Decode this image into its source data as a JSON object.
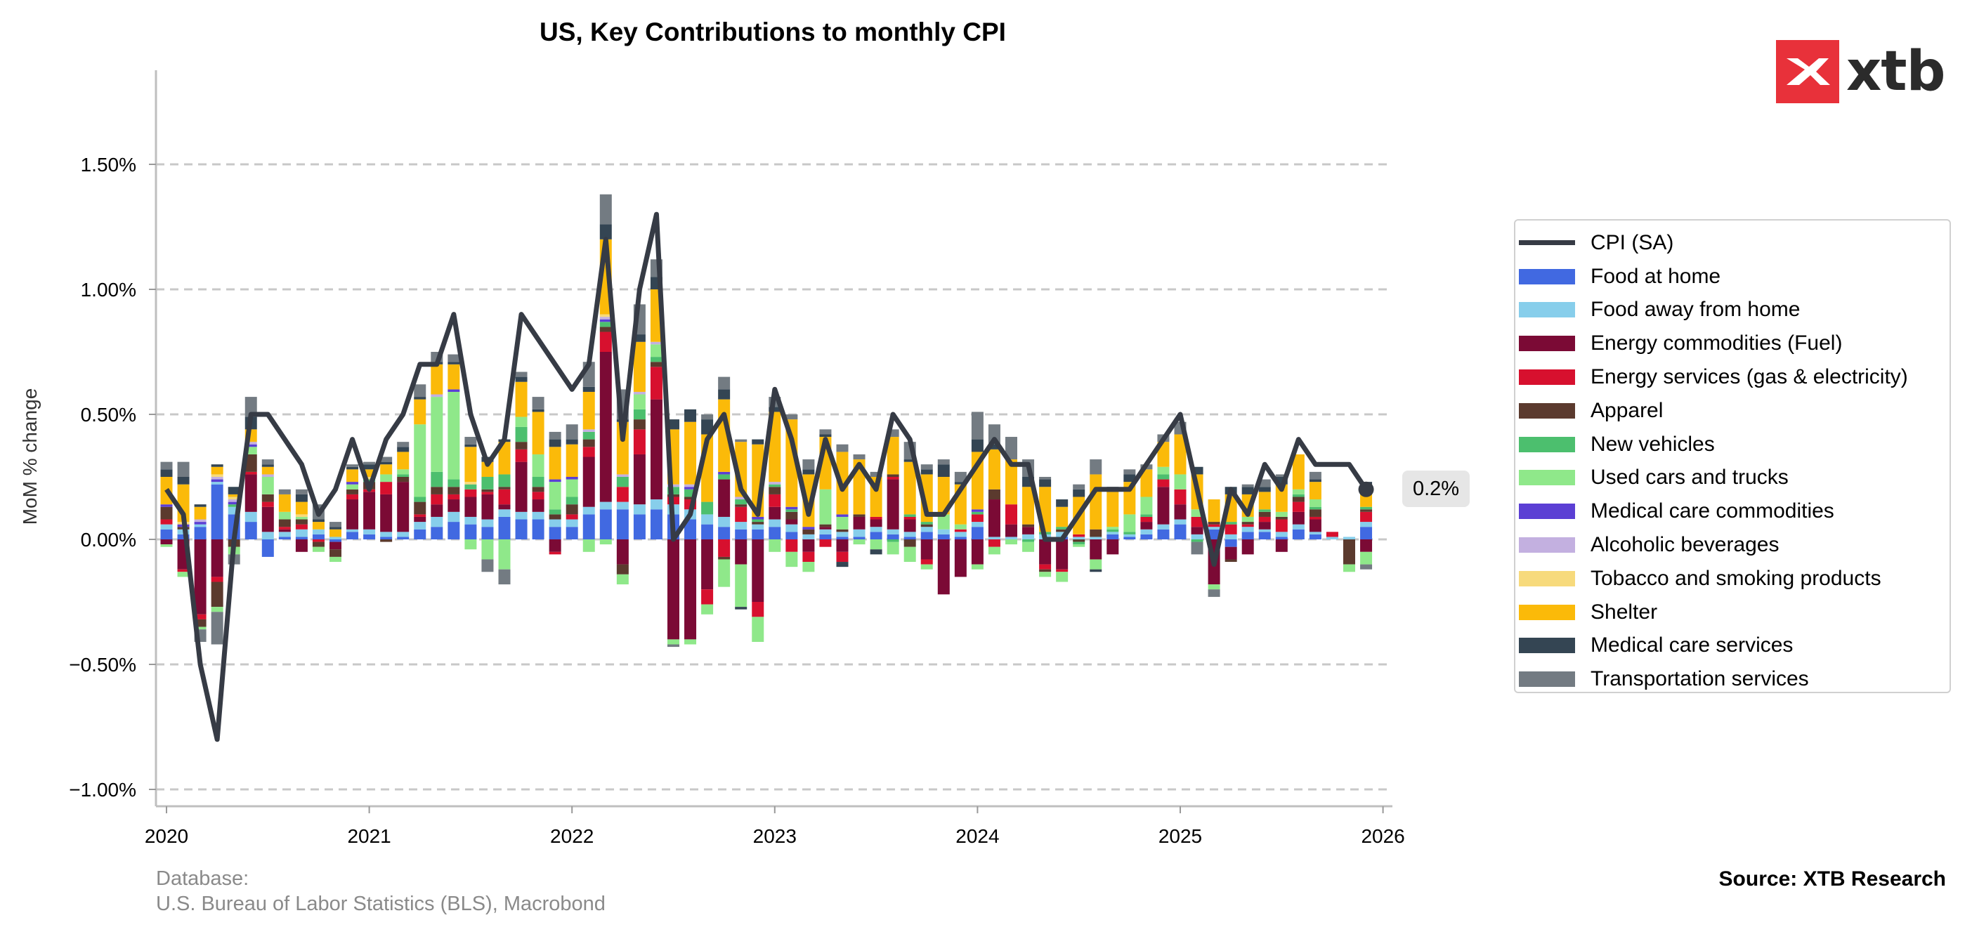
{
  "logo": {
    "text": "xtb",
    "icon": "xtb-x-logo-icon"
  },
  "source": "Source: XTB Research",
  "database_line1": "Database:",
  "database_line2": "U.S. Bureau of Labor Statistics (BLS), Macrobond",
  "last_value_label": "0.2%",
  "colors": {
    "food_home": "#4169E1",
    "food_away": "#87CEEB",
    "energy_fuel": "#7B0A35",
    "energy_services": "#D7102E",
    "apparel": "#5B3A2E",
    "new_vehicles": "#4CBF6E",
    "used_cars": "#8FE88A",
    "med_commodities": "#5B3FD4",
    "alcohol": "#C3B0E0",
    "tobacco": "#F7DA7C",
    "shelter": "#FBBA09",
    "med_services": "#344553",
    "transport": "#737B82",
    "cpi_line": "#363B45"
  },
  "chart_data": {
    "type": "bar",
    "title": "US, Key Contributions to monthly CPI",
    "ylabel": "MoM % change",
    "xlabel": "",
    "ylim": [
      -1.06,
      1.87
    ],
    "yticks": [
      -1.0,
      -0.5,
      0.0,
      0.5,
      1.0,
      1.5
    ],
    "ytick_labels": [
      "−1.00%",
      "−0.50%",
      "0.00%",
      "0.50%",
      "1.00%",
      "1.50%"
    ],
    "x_labels": [
      "2020",
      "2021",
      "2022",
      "2023",
      "2024",
      "2025",
      "2026"
    ],
    "grid": "horizontal dashed",
    "legend_position": "right",
    "stacked": true,
    "months": [
      "2020-01",
      "2020-02",
      "2020-03",
      "2020-04",
      "2020-05",
      "2020-06",
      "2020-07",
      "2020-08",
      "2020-09",
      "2020-10",
      "2020-11",
      "2020-12",
      "2021-01",
      "2021-02",
      "2021-03",
      "2021-04",
      "2021-05",
      "2021-06",
      "2021-07",
      "2021-08",
      "2021-09",
      "2021-10",
      "2021-11",
      "2021-12",
      "2022-01",
      "2022-02",
      "2022-03",
      "2022-04",
      "2022-05",
      "2022-06",
      "2022-07",
      "2022-08",
      "2022-09",
      "2022-10",
      "2022-11",
      "2022-12",
      "2023-01",
      "2023-02",
      "2023-03",
      "2023-04",
      "2023-05",
      "2023-06",
      "2023-07",
      "2023-08",
      "2023-09",
      "2023-10",
      "2023-11",
      "2023-12",
      "2024-01",
      "2024-02",
      "2024-03",
      "2024-04",
      "2024-05",
      "2024-06",
      "2024-07",
      "2024-08",
      "2024-09",
      "2024-10",
      "2024-11",
      "2024-12",
      "2025-01",
      "2025-02",
      "2025-03",
      "2025-04",
      "2025-05",
      "2025-06",
      "2025-07",
      "2025-08",
      "2025-09",
      "2025-10",
      "2025-11",
      "2025-12"
    ],
    "series": [
      {
        "name": "Food at home",
        "key": "food_home",
        "values": [
          0.04,
          0.02,
          0.05,
          0.22,
          0.1,
          0.07,
          -0.07,
          0.01,
          0.01,
          0.02,
          -0.01,
          0.03,
          0.02,
          0.01,
          0.01,
          0.04,
          0.05,
          0.07,
          0.06,
          0.05,
          0.09,
          0.08,
          0.08,
          0.05,
          0.05,
          0.1,
          0.12,
          0.12,
          0.1,
          0.12,
          0.1,
          0.08,
          0.06,
          0.05,
          0.04,
          0.04,
          0.05,
          0.03,
          0.0,
          0.02,
          0.01,
          0.01,
          0.03,
          0.02,
          0.01,
          0.03,
          0.02,
          0.01,
          0.05,
          0.0,
          0.0,
          0.0,
          0.0,
          0.01,
          0.0,
          0.0,
          0.02,
          0.01,
          0.02,
          0.04,
          0.06,
          0.0,
          0.04,
          -0.03,
          0.03,
          0.03,
          0.01,
          0.04,
          0.02,
          0.0,
          0.0,
          0.05
        ]
      },
      {
        "name": "Food away from home",
        "key": "food_away",
        "values": [
          0.02,
          0.02,
          0.01,
          0.01,
          0.03,
          0.04,
          0.03,
          0.02,
          0.03,
          0.02,
          0.01,
          0.01,
          0.02,
          0.02,
          0.02,
          0.03,
          0.04,
          0.04,
          0.03,
          0.03,
          0.03,
          0.03,
          0.03,
          0.03,
          0.03,
          0.03,
          0.03,
          0.03,
          0.04,
          0.04,
          0.04,
          0.04,
          0.04,
          0.04,
          0.03,
          0.02,
          0.03,
          0.03,
          0.02,
          0.02,
          0.02,
          0.03,
          0.02,
          0.02,
          0.02,
          0.02,
          0.02,
          0.02,
          0.02,
          0.01,
          0.01,
          0.02,
          0.02,
          0.02,
          0.01,
          0.01,
          0.01,
          0.01,
          0.02,
          0.02,
          0.02,
          0.02,
          0.01,
          0.02,
          0.02,
          0.01,
          0.02,
          0.02,
          0.01,
          0.01,
          0.01,
          0.02
        ]
      },
      {
        "name": "Energy commodities (Fuel)",
        "key": "energy_fuel",
        "values": [
          -0.02,
          -0.12,
          -0.3,
          -0.15,
          0.0,
          0.15,
          0.1,
          0.01,
          -0.05,
          0.0,
          -0.03,
          0.12,
          0.15,
          0.15,
          0.2,
          0.02,
          0.05,
          0.05,
          0.08,
          0.1,
          0.02,
          0.2,
          0.05,
          -0.05,
          0.0,
          0.2,
          0.6,
          -0.1,
          0.2,
          0.4,
          -0.4,
          -0.4,
          -0.2,
          0.15,
          -0.1,
          -0.25,
          0.05,
          0.02,
          -0.05,
          0.01,
          -0.05,
          0.05,
          0.03,
          0.2,
          0.05,
          -0.08,
          -0.22,
          -0.15,
          -0.1,
          0.15,
          0.05,
          0.03,
          -0.1,
          -0.12,
          0.0,
          -0.08,
          -0.06,
          0.0,
          0.03,
          0.15,
          0.06,
          0.03,
          -0.18,
          -0.05,
          -0.06,
          0.03,
          -0.05,
          0.05,
          0.05,
          0.0,
          0.0,
          -0.05
        ]
      },
      {
        "name": "Energy services (gas & electricity)",
        "key": "energy_services",
        "values": [
          0.02,
          -0.01,
          -0.02,
          -0.02,
          0.0,
          0.01,
          0.02,
          0.01,
          0.02,
          -0.01,
          0.0,
          0.02,
          0.01,
          0.05,
          0.0,
          0.01,
          0.04,
          0.02,
          0.03,
          0.01,
          0.06,
          0.05,
          0.03,
          -0.01,
          0.02,
          0.04,
          0.08,
          0.06,
          0.1,
          0.13,
          0.03,
          0.04,
          -0.06,
          -0.07,
          0.06,
          -0.06,
          0.05,
          -0.05,
          -0.04,
          -0.03,
          -0.04,
          0.0,
          0.01,
          0.01,
          0.01,
          -0.02,
          0.0,
          0.01,
          0.03,
          -0.03,
          0.08,
          0.0,
          -0.02,
          -0.01,
          0.01,
          0.0,
          0.0,
          0.0,
          0.02,
          0.03,
          0.06,
          0.04,
          0.01,
          0.04,
          0.01,
          0.02,
          0.05,
          0.04,
          0.01,
          0.02,
          0.0,
          0.04
        ]
      },
      {
        "name": "Apparel",
        "key": "apparel",
        "values": [
          0.05,
          0.01,
          -0.03,
          -0.1,
          -0.03,
          0.07,
          0.03,
          0.03,
          0.02,
          -0.02,
          -0.03,
          0.02,
          0.03,
          -0.01,
          0.02,
          0.05,
          0.03,
          0.03,
          0.0,
          0.01,
          0.01,
          0.03,
          0.02,
          0.02,
          0.04,
          0.03,
          0.02,
          -0.04,
          0.04,
          0.02,
          0.01,
          0.01,
          0.0,
          -0.01,
          0.01,
          0.01,
          0.03,
          0.03,
          0.02,
          0.01,
          0.01,
          0.01,
          0.0,
          0.01,
          -0.03,
          0.01,
          0.0,
          0.0,
          0.0,
          0.04,
          0.0,
          0.01,
          -0.01,
          0.01,
          -0.01,
          0.03,
          0.0,
          0.0,
          0.0,
          0.0,
          0.0,
          0.0,
          0.01,
          -0.01,
          0.01,
          0.02,
          0.01,
          0.02,
          0.03,
          0.0,
          -0.1,
          0.01
        ]
      },
      {
        "name": "New vehicles",
        "key": "new_vehicles",
        "values": [
          0.0,
          0.0,
          0.0,
          0.0,
          0.01,
          0.0,
          0.0,
          0.0,
          0.0,
          0.0,
          0.0,
          0.0,
          0.01,
          0.0,
          0.01,
          0.02,
          0.06,
          0.03,
          0.02,
          0.05,
          0.05,
          0.06,
          0.04,
          0.02,
          0.03,
          0.03,
          0.02,
          0.04,
          0.04,
          0.02,
          0.03,
          0.03,
          0.05,
          0.02,
          0.02,
          0.01,
          0.01,
          0.01,
          0.0,
          0.0,
          0.0,
          0.0,
          0.0,
          -0.01,
          0.01,
          0.01,
          0.0,
          0.0,
          0.01,
          0.0,
          0.0,
          -0.01,
          0.01,
          0.01,
          -0.01,
          0.0,
          0.01,
          0.01,
          0.01,
          0.02,
          0.0,
          -0.01,
          0.0,
          0.01,
          0.0,
          0.01,
          0.0,
          0.01,
          0.01,
          0.0,
          0.0,
          0.01
        ]
      },
      {
        "name": "Used cars and trucks",
        "key": "used_cars",
        "values": [
          -0.01,
          -0.02,
          -0.01,
          -0.02,
          -0.03,
          0.03,
          0.07,
          0.03,
          0.01,
          -0.02,
          -0.02,
          0.02,
          0.0,
          0.03,
          0.02,
          0.29,
          0.3,
          0.35,
          -0.04,
          -0.08,
          -0.12,
          0.04,
          0.09,
          0.11,
          0.07,
          -0.05,
          -0.02,
          -0.04,
          0.06,
          0.05,
          -0.02,
          -0.02,
          -0.04,
          -0.11,
          -0.17,
          -0.1,
          -0.05,
          -0.06,
          -0.04,
          0.14,
          0.05,
          -0.02,
          -0.04,
          -0.05,
          -0.06,
          -0.02,
          0.06,
          0.02,
          -0.02,
          -0.03,
          -0.02,
          -0.04,
          -0.02,
          -0.04,
          -0.01,
          -0.04,
          0.01,
          0.07,
          0.07,
          0.03,
          0.06,
          0.03,
          -0.02,
          0.0,
          0.02,
          0.0,
          0.02,
          0.02,
          0.03,
          0.0,
          -0.03,
          -0.05
        ]
      },
      {
        "name": "Medical care commodities",
        "key": "med_commodities",
        "values": [
          0.01,
          0.01,
          0.01,
          0.01,
          0.01,
          0.01,
          0.0,
          0.0,
          0.0,
          0.0,
          0.0,
          0.01,
          0.0,
          0.0,
          0.0,
          0.0,
          0.0,
          0.01,
          0.0,
          0.0,
          0.0,
          0.0,
          0.0,
          0.01,
          0.01,
          0.0,
          0.01,
          0.0,
          0.0,
          0.0,
          0.0,
          0.01,
          0.0,
          0.01,
          0.0,
          0.01,
          0.0,
          0.01,
          0.01,
          0.0,
          0.01,
          0.0,
          0.0,
          0.0,
          0.0,
          0.0,
          0.0,
          0.0,
          0.01,
          0.0,
          0.0,
          0.0,
          0.0,
          0.0,
          0.0,
          0.0,
          0.0,
          0.0,
          0.0,
          0.0,
          0.0,
          0.0,
          0.0,
          0.0,
          0.0,
          0.0,
          0.0,
          0.0,
          0.0,
          0.0,
          0.0,
          0.0
        ]
      },
      {
        "name": "Alcoholic beverages",
        "key": "alcohol",
        "values": [
          0.0,
          0.0,
          0.01,
          0.01,
          0.01,
          0.01,
          0.01,
          0.0,
          0.0,
          0.0,
          0.0,
          0.0,
          0.0,
          0.0,
          0.0,
          0.0,
          0.01,
          0.0,
          0.0,
          0.0,
          0.0,
          0.0,
          0.0,
          0.0,
          0.0,
          0.01,
          0.01,
          0.01,
          0.01,
          0.01,
          0.01,
          0.01,
          0.0,
          0.0,
          0.01,
          0.0,
          0.01,
          0.0,
          0.0,
          0.0,
          0.0,
          0.0,
          0.0,
          0.0,
          0.0,
          0.0,
          0.0,
          0.0,
          0.0,
          0.0,
          0.0,
          0.0,
          0.0,
          0.0,
          0.0,
          0.0,
          0.0,
          0.0,
          0.0,
          0.0,
          0.0,
          0.0,
          0.0,
          0.0,
          0.0,
          0.0,
          0.0,
          0.0,
          0.0,
          0.0,
          0.0,
          0.0
        ]
      },
      {
        "name": "Tobacco and smoking products",
        "key": "tobacco",
        "values": [
          0.0,
          0.01,
          0.0,
          0.01,
          0.01,
          0.0,
          0.0,
          0.0,
          0.01,
          0.0,
          0.0,
          0.0,
          0.01,
          0.0,
          0.0,
          0.0,
          0.0,
          0.0,
          0.01,
          0.0,
          0.0,
          0.0,
          0.0,
          0.0,
          0.0,
          0.0,
          0.01,
          0.0,
          0.0,
          0.0,
          0.0,
          0.0,
          0.0,
          0.0,
          0.0,
          0.0,
          0.0,
          0.0,
          0.0,
          0.0,
          0.0,
          0.0,
          0.0,
          0.0,
          0.0,
          0.0,
          0.0,
          0.0,
          0.0,
          0.0,
          0.0,
          0.0,
          0.0,
          0.0,
          0.0,
          0.0,
          0.0,
          0.0,
          0.0,
          0.0,
          0.0,
          0.0,
          0.0,
          0.0,
          0.0,
          0.0,
          0.0,
          0.0,
          0.0,
          0.0,
          0.0,
          0.0
        ]
      },
      {
        "name": "Shelter",
        "key": "shelter",
        "values": [
          0.11,
          0.15,
          0.05,
          0.03,
          0.01,
          0.05,
          0.03,
          0.07,
          0.05,
          0.03,
          0.03,
          0.05,
          0.03,
          0.04,
          0.07,
          0.1,
          0.12,
          0.1,
          0.14,
          0.06,
          0.13,
          0.14,
          0.17,
          0.13,
          0.13,
          0.15,
          0.3,
          0.21,
          0.2,
          0.21,
          0.22,
          0.25,
          0.27,
          0.29,
          0.22,
          0.29,
          0.28,
          0.35,
          0.21,
          0.21,
          0.25,
          0.22,
          0.16,
          0.15,
          0.21,
          0.19,
          0.15,
          0.16,
          0.23,
          0.16,
          0.18,
          0.15,
          0.18,
          0.08,
          0.15,
          0.22,
          0.14,
          0.13,
          0.11,
          0.1,
          0.16,
          0.14,
          0.09,
          0.11,
          0.09,
          0.07,
          0.11,
          0.14,
          0.07,
          0.0,
          0.0,
          0.09
        ]
      },
      {
        "name": "Medical care services",
        "key": "med_services",
        "values": [
          0.03,
          0.03,
          0.01,
          0.01,
          0.03,
          0.05,
          0.01,
          0.0,
          0.03,
          0.01,
          0.01,
          0.01,
          0.02,
          0.01,
          0.02,
          0.01,
          0.01,
          0.01,
          0.01,
          0.02,
          0.01,
          0.02,
          0.01,
          0.03,
          0.02,
          0.02,
          0.06,
          0.01,
          0.03,
          0.05,
          0.04,
          0.05,
          0.06,
          0.04,
          -0.01,
          0.02,
          0.02,
          0.0,
          0.02,
          0.01,
          -0.02,
          0.0,
          -0.02,
          0.0,
          0.01,
          0.02,
          0.05,
          0.01,
          0.05,
          0.02,
          0.0,
          0.04,
          0.03,
          0.03,
          0.03,
          -0.01,
          0.02,
          0.03,
          0.0,
          0.0,
          0.0,
          0.03,
          0.0,
          0.03,
          0.03,
          0.02,
          0.03,
          0.0,
          0.01,
          0.0,
          0.0,
          0.01
        ]
      },
      {
        "name": "Transportation services",
        "key": "transport",
        "values": [
          0.03,
          0.06,
          -0.05,
          -0.13,
          -0.04,
          0.08,
          0.02,
          0.02,
          0.02,
          0.06,
          0.02,
          0.01,
          0.01,
          0.02,
          0.02,
          0.05,
          0.04,
          0.03,
          0.03,
          -0.05,
          -0.06,
          0.02,
          0.05,
          0.03,
          0.06,
          0.1,
          0.12,
          0.12,
          0.12,
          0.07,
          -0.01,
          0.0,
          0.02,
          0.05,
          0.01,
          0.0,
          0.04,
          0.02,
          0.04,
          0.02,
          0.03,
          0.02,
          0.02,
          0.03,
          0.07,
          0.02,
          0.02,
          0.04,
          0.11,
          0.08,
          0.09,
          0.07,
          0.01,
          0.0,
          0.02,
          0.06,
          0.0,
          0.02,
          0.02,
          0.03,
          0.05,
          -0.05,
          -0.03,
          0.0,
          0.01,
          0.03,
          0.01,
          0.0,
          0.03,
          0.0,
          0.0,
          -0.02
        ]
      }
    ],
    "line": {
      "name": "CPI (SA)",
      "key": "cpi_line",
      "values": [
        0.2,
        0.1,
        -0.5,
        -0.8,
        0.0,
        0.5,
        0.5,
        0.4,
        0.3,
        0.1,
        0.2,
        0.4,
        0.2,
        0.4,
        0.5,
        0.7,
        0.7,
        0.9,
        0.5,
        0.3,
        0.4,
        0.9,
        0.8,
        0.7,
        0.6,
        0.7,
        1.2,
        0.4,
        1.0,
        1.3,
        0.0,
        0.1,
        0.4,
        0.5,
        0.2,
        0.1,
        0.6,
        0.4,
        0.1,
        0.4,
        0.2,
        0.3,
        0.2,
        0.5,
        0.4,
        0.1,
        0.1,
        0.2,
        0.3,
        0.4,
        0.3,
        0.3,
        0.0,
        0.0,
        0.1,
        0.2,
        0.2,
        0.2,
        0.3,
        0.4,
        0.5,
        0.2,
        -0.1,
        0.2,
        0.1,
        0.3,
        0.2,
        0.4,
        0.3,
        0.3,
        0.3,
        0.2
      ]
    }
  }
}
